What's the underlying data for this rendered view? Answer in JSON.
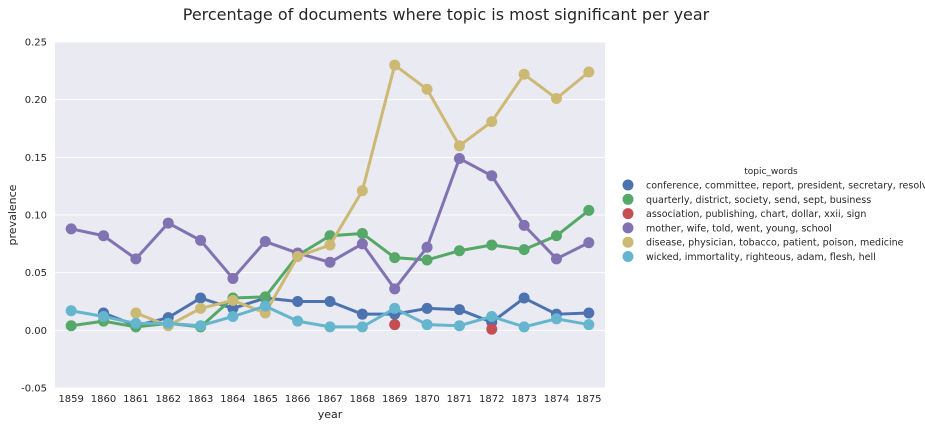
{
  "chart_data": {
    "type": "line",
    "title": "Percentage of documents where topic is most significant per year",
    "xlabel": "year",
    "ylabel": "prevalence",
    "ylim": [
      -0.05,
      0.25
    ],
    "yticks": [
      "-0.05",
      "0.00",
      "0.05",
      "0.10",
      "0.15",
      "0.20",
      "0.25"
    ],
    "grid": true,
    "legend_position": "right",
    "legend_title": "topic_words",
    "categories": [
      "1859",
      "1860",
      "1861",
      "1862",
      "1863",
      "1864",
      "1865",
      "1866",
      "1867",
      "1868",
      "1869",
      "1870",
      "1871",
      "1872",
      "1873",
      "1874",
      "1875"
    ],
    "series": [
      {
        "name": "conference, committee, report, president, secretary, resolved",
        "color": "#4c72b0",
        "values": [
          null,
          0.015,
          0.004,
          0.011,
          0.028,
          0.019,
          0.028,
          0.025,
          0.025,
          0.014,
          0.014,
          0.019,
          0.018,
          0.007,
          0.028,
          0.014,
          0.015
        ]
      },
      {
        "name": "quarterly, district, society, send, sept, business",
        "color": "#55a868",
        "values": [
          0.004,
          0.008,
          0.003,
          0.006,
          0.003,
          0.028,
          0.029,
          0.065,
          0.082,
          0.084,
          0.063,
          0.061,
          0.069,
          0.074,
          0.07,
          0.082,
          0.104
        ]
      },
      {
        "name": "association, publishing, chart, dollar, xxii, sign",
        "color": "#c44e52",
        "values": [
          null,
          null,
          null,
          null,
          null,
          null,
          null,
          null,
          null,
          null,
          0.005,
          null,
          null,
          0.001,
          null,
          null,
          null
        ]
      },
      {
        "name": "mother, wife, told, went, young, school",
        "color": "#8172b2",
        "values": [
          0.088,
          0.082,
          0.062,
          0.093,
          0.078,
          0.045,
          0.077,
          0.067,
          0.059,
          0.075,
          0.036,
          0.072,
          0.149,
          0.134,
          0.091,
          0.062,
          0.076
        ]
      },
      {
        "name": "disease, physician, tobacco, patient, poison, medicine",
        "color": "#ccb974",
        "values": [
          null,
          null,
          0.015,
          0.004,
          0.019,
          0.026,
          0.015,
          0.064,
          0.074,
          0.121,
          0.23,
          0.209,
          0.16,
          0.181,
          0.222,
          0.201,
          0.224
        ]
      },
      {
        "name": "wicked, immortality, righteous, adam, flesh, hell",
        "color": "#64b5cd",
        "values": [
          0.017,
          0.012,
          0.006,
          0.006,
          0.004,
          0.012,
          0.021,
          0.008,
          0.003,
          0.003,
          0.019,
          0.005,
          0.004,
          0.012,
          0.003,
          0.01,
          0.005
        ]
      }
    ]
  }
}
